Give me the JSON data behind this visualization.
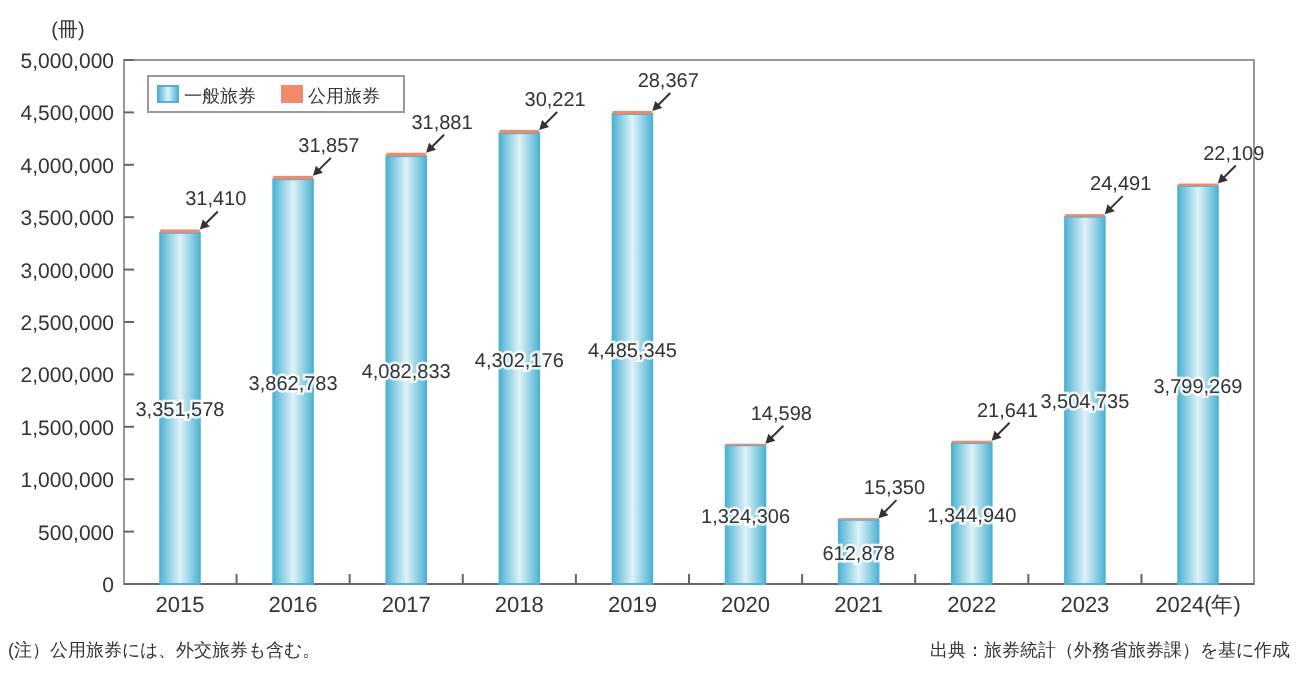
{
  "chart_data": {
    "type": "bar",
    "stacked": true,
    "ylabel": "(冊)",
    "categories": [
      "2015",
      "2016",
      "2017",
      "2018",
      "2019",
      "2020",
      "2021",
      "2022",
      "2023",
      "2024(年)"
    ],
    "series": [
      {
        "name": "一般旅券",
        "color": "#4fb3d4",
        "values": [
          3351578,
          3862783,
          4082833,
          4302176,
          4485345,
          1324306,
          612878,
          1344940,
          3504735,
          3799269
        ],
        "value_labels": [
          "3,351,578",
          "3,862,783",
          "4,082,833",
          "4,302,176",
          "4,485,345",
          "1,324,306",
          "612,878",
          "1,344,940",
          "3,504,735",
          "3,799,269"
        ]
      },
      {
        "name": "公用旅券",
        "color": "#f08a6a",
        "values": [
          31410,
          31857,
          31881,
          30221,
          28367,
          14598,
          15350,
          21641,
          24491,
          22109
        ],
        "value_labels": [
          "31,410",
          "31,857",
          "31,881",
          "30,221",
          "28,367",
          "14,598",
          "15,350",
          "21,641",
          "24,491",
          "22,109"
        ]
      }
    ],
    "ylim": [
      0,
      5000000
    ],
    "yticks": [
      0,
      {
        "value": 500000,
        "label": "500,000"
      },
      {
        "value": 1000000,
        "label": "1,000,000"
      },
      {
        "value": 1500000,
        "label": "1,500,000"
      },
      {
        "value": 2000000,
        "label": "2,000,000"
      },
      {
        "value": 2500000,
        "label": "2,500,000"
      },
      {
        "value": 3000000,
        "label": "3,000,000"
      },
      {
        "value": 3500000,
        "label": "3,500,000"
      },
      {
        "value": 4000000,
        "label": "4,000,000"
      },
      {
        "value": 4500000,
        "label": "4,500,000"
      },
      {
        "value": 5000000,
        "label": "5,000,000"
      }
    ],
    "legend": "top left",
    "grid": false,
    "annotations": [
      "(注）公用旅券には、外交旅券も含む。",
      "出典：旅券統計（外務省旅券課）を基に作成"
    ]
  }
}
